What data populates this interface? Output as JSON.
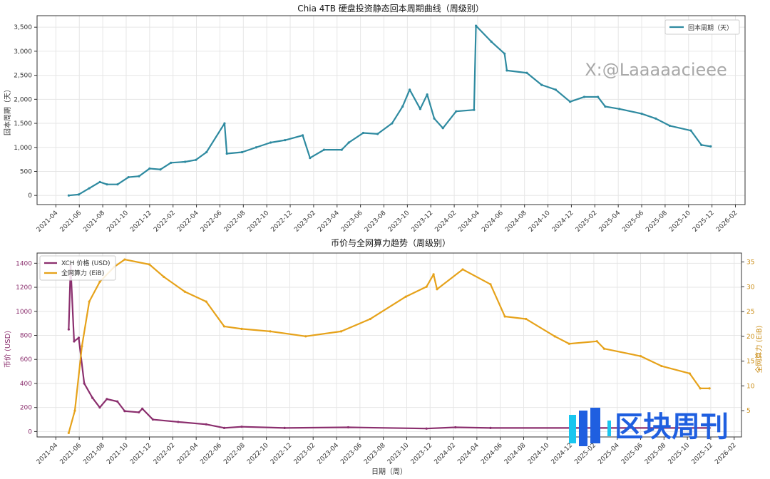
{
  "colors": {
    "payback": "#2e8aa0",
    "price": "#8b2f6e",
    "hash": "#e6a21a",
    "logo": "#1f5fe0",
    "logo_accent": "#19c6ef"
  },
  "watermark": "X:@Laaaaacieee",
  "logo_text": "区块周刊",
  "chart_data": [
    {
      "type": "line",
      "title": "Chia 4TB 硬盘投资静态回本周期曲线（周级别）",
      "xlabel": "",
      "ylabel": "回本周期（天）",
      "ylim": [
        -190,
        3740
      ],
      "xlim": [
        "2021-02-13",
        "2026-02-26"
      ],
      "grid": true,
      "legend": "top-right",
      "yticks": [
        0,
        500,
        1000,
        1500,
        2000,
        2500,
        3000,
        3500
      ],
      "ytick_labels": [
        "0",
        "500",
        "1,000",
        "1,500",
        "2,000",
        "2,500",
        "3,000",
        "3,500"
      ],
      "xticks": [
        "2021-04",
        "2021-06",
        "2021-08",
        "2021-10",
        "2021-12",
        "2022-02",
        "2022-04",
        "2022-06",
        "2022-08",
        "2022-10",
        "2022-12",
        "2023-02",
        "2023-04",
        "2023-06",
        "2023-08",
        "2023-10",
        "2023-12",
        "2024-02",
        "2024-04",
        "2024-06",
        "2024-08",
        "2024-10",
        "2024-12",
        "2025-02",
        "2025-04",
        "2025-06",
        "2025-08",
        "2025-10",
        "2025-12",
        "2026-02"
      ],
      "series": [
        {
          "name": "回本周期（天）",
          "axis": "left",
          "color": "#2e8aa0",
          "x": [
            "2021-05-04",
            "2021-05-30",
            "2021-06-27",
            "2021-07-24",
            "2021-08-12",
            "2021-09-09",
            "2021-10-07",
            "2021-11-04",
            "2021-12-01",
            "2021-12-29",
            "2022-01-26",
            "2022-03-02",
            "2022-03-30",
            "2022-04-27",
            "2022-06-13",
            "2022-06-19",
            "2022-07-28",
            "2022-09-04",
            "2022-10-11",
            "2022-11-18",
            "2023-01-03",
            "2023-01-22",
            "2023-02-28",
            "2023-04-13",
            "2023-05-01",
            "2023-06-08",
            "2023-07-15",
            "2023-08-22",
            "2023-09-19",
            "2023-10-07",
            "2023-11-04",
            "2023-11-22",
            "2023-12-10",
            "2024-01-02",
            "2024-02-06",
            "2024-03-22",
            "2024-03-27",
            "2024-05-06",
            "2024-06-10",
            "2024-06-16",
            "2024-08-07",
            "2024-09-15",
            "2024-10-21",
            "2024-11-28",
            "2025-01-04",
            "2025-02-09",
            "2025-02-28",
            "2025-04-04",
            "2025-06-01",
            "2025-07-07",
            "2025-08-13",
            "2025-10-07",
            "2025-11-04",
            "2025-11-28"
          ],
          "y": [
            0,
            20,
            150,
            280,
            230,
            230,
            380,
            400,
            560,
            540,
            680,
            700,
            740,
            900,
            1500,
            870,
            900,
            1000,
            1100,
            1150,
            1250,
            780,
            950,
            950,
            1100,
            1300,
            1280,
            1500,
            1850,
            2200,
            1800,
            2100,
            1600,
            1400,
            1750,
            1780,
            3530,
            3200,
            2950,
            2600,
            2550,
            2300,
            2200,
            1950,
            2050,
            2050,
            1850,
            1800,
            1700,
            1600,
            1450,
            1350,
            1050,
            1020
          ]
        }
      ]
    },
    {
      "type": "line",
      "title": "币价与全网算力趋势（周级别）",
      "xlabel": "日期（周）",
      "ylabel": "币价 (USD)",
      "ylabel_right": "全网算力 (EiB)",
      "ylim": [
        -45,
        1485
      ],
      "ylim_right": [
        -0.3,
        36.8
      ],
      "xlim": [
        "2021-02-13",
        "2026-02-20"
      ],
      "grid": true,
      "legend": "top-left",
      "yticks": [
        0,
        200,
        400,
        600,
        800,
        1000,
        1200,
        1400
      ],
      "yticks_right": [
        5,
        10,
        15,
        20,
        25,
        30,
        35
      ],
      "xticks": [
        "2021-04",
        "2021-06",
        "2021-08",
        "2021-10",
        "2021-12",
        "2022-02",
        "2022-04",
        "2022-06",
        "2022-08",
        "2022-10",
        "2022-12",
        "2023-02",
        "2023-04",
        "2023-06",
        "2023-08",
        "2023-10",
        "2023-12",
        "2024-02",
        "2024-04",
        "2024-06",
        "2024-08",
        "2024-10",
        "2024-12",
        "2025-02",
        "2025-04",
        "2025-06",
        "2025-08",
        "2025-10",
        "2025-12",
        "2026-02"
      ],
      "series": [
        {
          "name": "XCH 价格 (USD)",
          "axis": "left",
          "color": "#8b2f6e",
          "x": [
            "2021-05-04",
            "2021-05-09",
            "2021-05-18",
            "2021-05-30",
            "2021-06-14",
            "2021-07-05",
            "2021-07-24",
            "2021-08-12",
            "2021-09-09",
            "2021-09-28",
            "2021-11-04",
            "2021-11-13",
            "2021-12-10",
            "2022-02-15",
            "2022-04-27",
            "2022-06-13",
            "2022-07-28",
            "2022-11-18",
            "2023-05-01",
            "2023-11-22",
            "2024-02-06",
            "2024-05-06",
            "2025-11-28"
          ],
          "y": [
            850,
            1380,
            750,
            780,
            400,
            280,
            200,
            270,
            250,
            170,
            160,
            190,
            100,
            80,
            60,
            30,
            40,
            30,
            35,
            25,
            35,
            30,
            30
          ]
        },
        {
          "name": "全网算力 (EiB)",
          "axis": "right",
          "color": "#e6a21a",
          "x": [
            "2021-05-04",
            "2021-05-20",
            "2021-06-08",
            "2021-06-27",
            "2021-07-24",
            "2021-08-31",
            "2021-09-28",
            "2021-12-01",
            "2022-01-08",
            "2022-03-02",
            "2022-04-27",
            "2022-06-13",
            "2022-07-28",
            "2022-10-11",
            "2023-01-12",
            "2023-04-13",
            "2023-06-28",
            "2023-09-29",
            "2023-11-22",
            "2023-12-10",
            "2023-12-19",
            "2024-02-25",
            "2024-05-06",
            "2024-06-13",
            "2024-08-07",
            "2024-10-21",
            "2024-11-28",
            "2025-02-09",
            "2025-02-28",
            "2025-06-01",
            "2025-07-25",
            "2025-10-07",
            "2025-11-04",
            "2025-11-28"
          ],
          "y": [
            0.5,
            5,
            18,
            27,
            31,
            34,
            35.5,
            34.5,
            32,
            29,
            27,
            22,
            21.5,
            21,
            20,
            21,
            23.5,
            28,
            30,
            32.5,
            29.5,
            33.5,
            30.5,
            24,
            23.5,
            20,
            18.5,
            19,
            17.5,
            16,
            14,
            12.5,
            9.5,
            9.5
          ]
        }
      ]
    }
  ]
}
